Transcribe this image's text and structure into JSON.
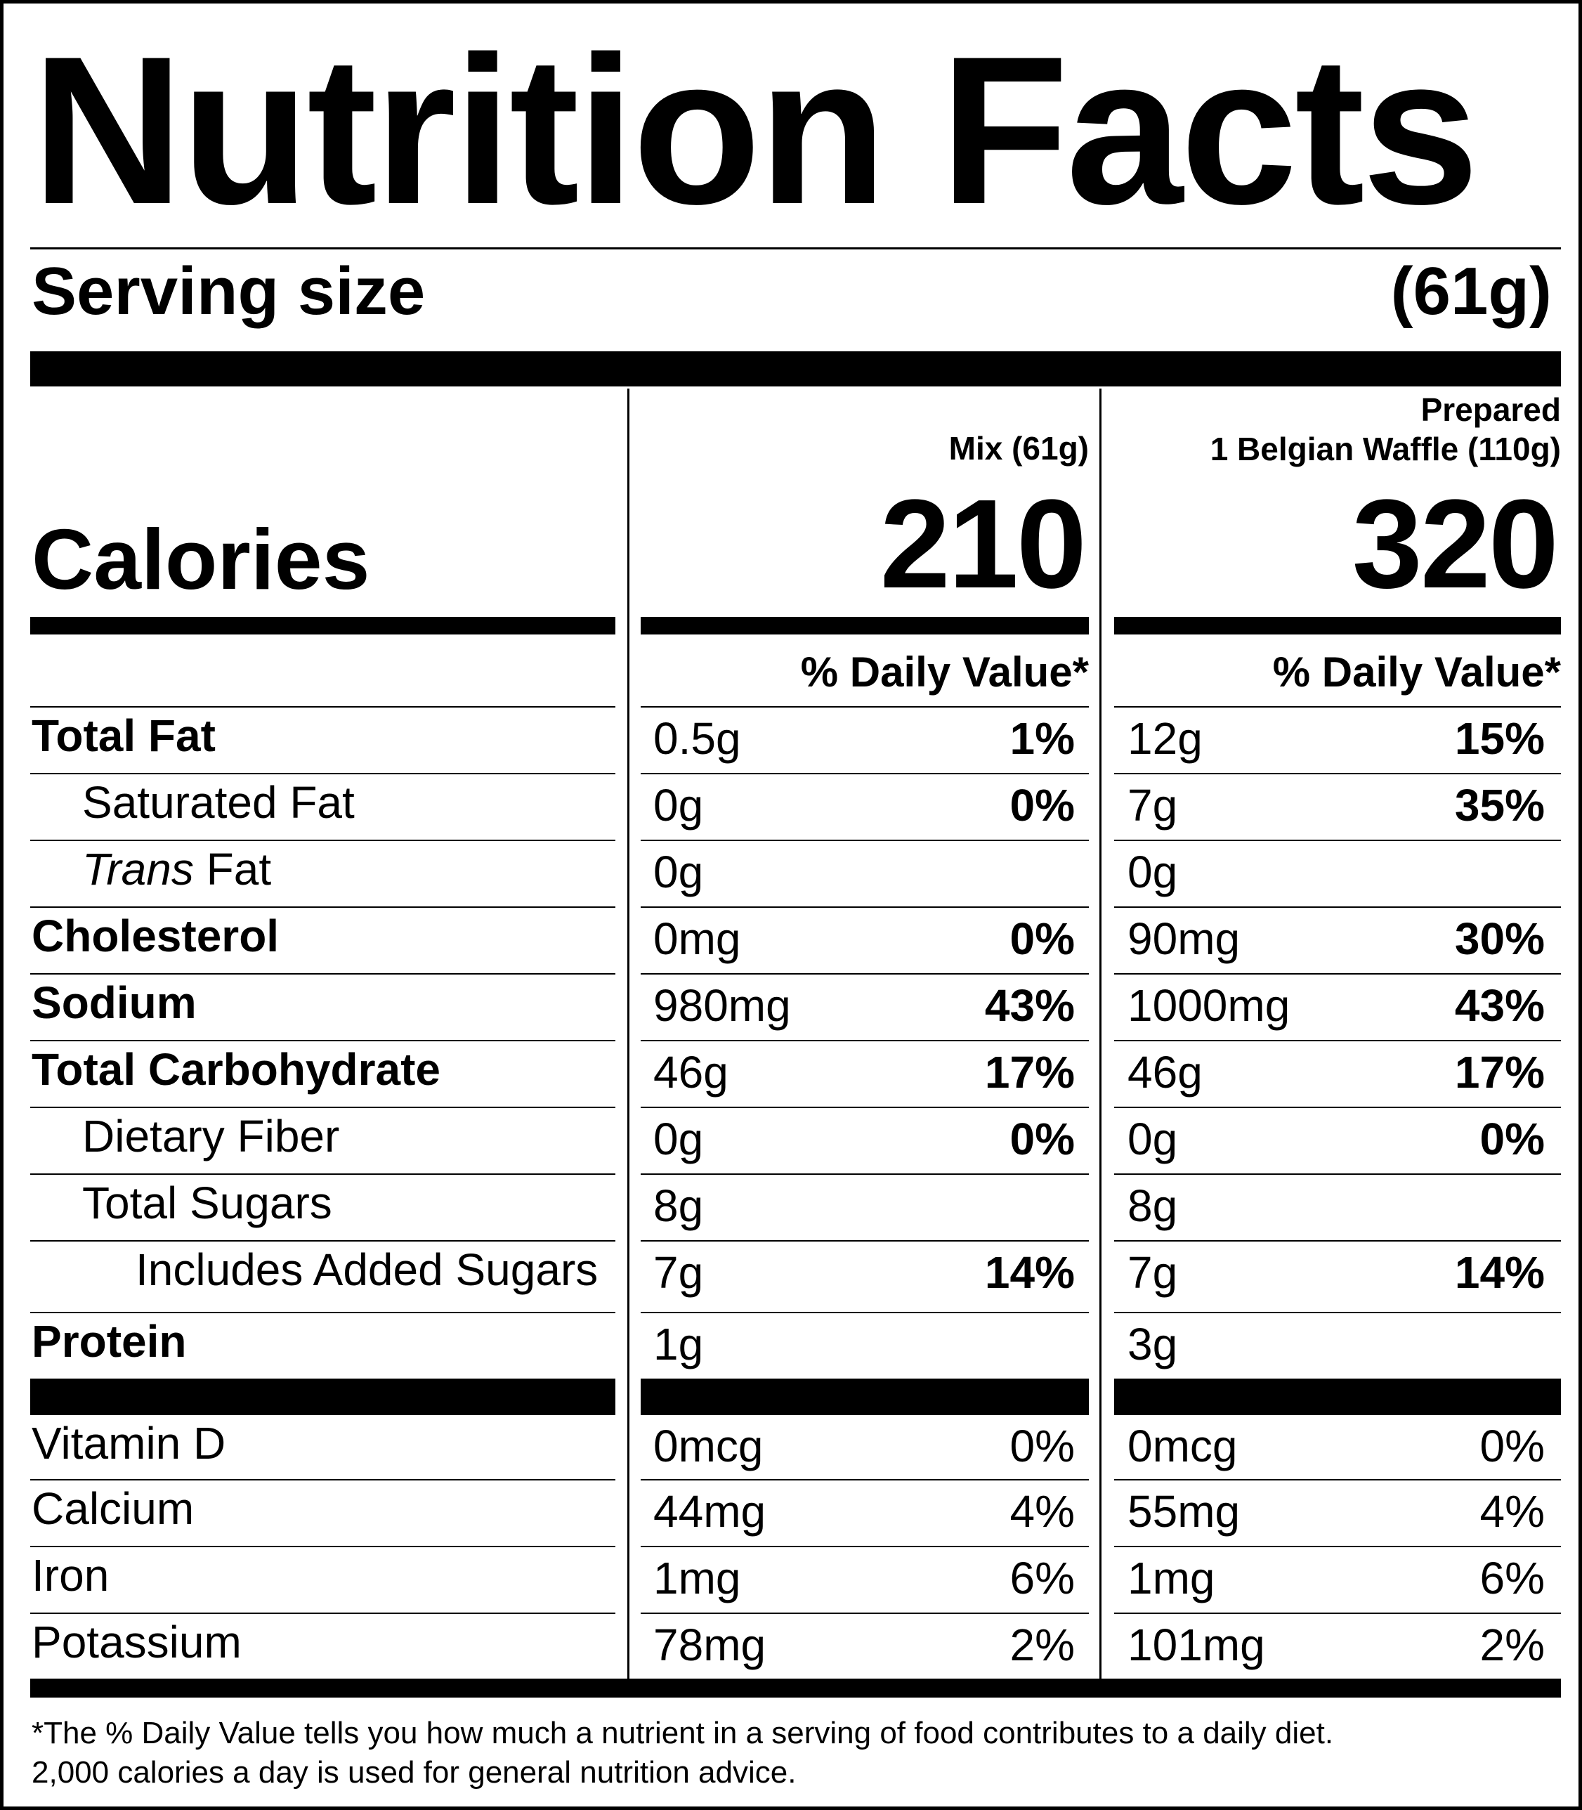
{
  "title": "Nutrition Facts",
  "serving": {
    "label": "Serving size",
    "value": "(61g)"
  },
  "calories_label": "Calories",
  "columns": [
    {
      "line1": "",
      "line2": "Mix (61g)",
      "calories": "210",
      "dv_header": "% Daily Value*"
    },
    {
      "line1": "Prepared",
      "line2": "1 Belgian Waffle (110g)",
      "calories": "320",
      "dv_header": "% Daily Value*"
    }
  ],
  "nutrients": [
    {
      "name": "Total Fat",
      "style": "bold",
      "indent": 0,
      "mix": {
        "amount": "0.5g",
        "dv": "1%"
      },
      "prepared": {
        "amount": "12g",
        "dv": "15%"
      }
    },
    {
      "name": "Saturated Fat",
      "style": "normal",
      "indent": 1,
      "mix": {
        "amount": "0g",
        "dv": "0%"
      },
      "prepared": {
        "amount": "7g",
        "dv": "35%"
      }
    },
    {
      "name_italic": "Trans",
      "name": " Fat",
      "style": "normal",
      "indent": 1,
      "mix": {
        "amount": "0g",
        "dv": ""
      },
      "prepared": {
        "amount": "0g",
        "dv": ""
      }
    },
    {
      "name": "Cholesterol",
      "style": "bold",
      "indent": 0,
      "mix": {
        "amount": "0mg",
        "dv": "0%"
      },
      "prepared": {
        "amount": "90mg",
        "dv": "30%"
      }
    },
    {
      "name": "Sodium",
      "style": "bold",
      "indent": 0,
      "mix": {
        "amount": "980mg",
        "dv": "43%"
      },
      "prepared": {
        "amount": "1000mg",
        "dv": "43%"
      }
    },
    {
      "name": "Total Carbohydrate",
      "style": "bold",
      "indent": 0,
      "mix": {
        "amount": "46g",
        "dv": "17%"
      },
      "prepared": {
        "amount": "46g",
        "dv": "17%"
      }
    },
    {
      "name": "Dietary Fiber",
      "style": "normal",
      "indent": 1,
      "mix": {
        "amount": "0g",
        "dv": "0%"
      },
      "prepared": {
        "amount": "0g",
        "dv": "0%"
      }
    },
    {
      "name": "Total Sugars",
      "style": "normal",
      "indent": 1,
      "mix": {
        "amount": "8g",
        "dv": ""
      },
      "prepared": {
        "amount": "8g",
        "dv": ""
      }
    },
    {
      "name": "Includes Added Sugars",
      "style": "normal",
      "indent": 2,
      "mix": {
        "amount": "7g",
        "dv": "14%"
      },
      "prepared": {
        "amount": "7g",
        "dv": "14%"
      }
    },
    {
      "name": "Protein",
      "style": "bold",
      "indent": 0,
      "mix": {
        "amount": "1g",
        "dv": ""
      },
      "prepared": {
        "amount": "3g",
        "dv": ""
      }
    }
  ],
  "vitamins": [
    {
      "name": "Vitamin D",
      "mix": {
        "amount": "0mcg",
        "dv": "0%"
      },
      "prepared": {
        "amount": "0mcg",
        "dv": "0%"
      }
    },
    {
      "name": "Calcium",
      "mix": {
        "amount": "44mg",
        "dv": "4%"
      },
      "prepared": {
        "amount": "55mg",
        "dv": "4%"
      }
    },
    {
      "name": "Iron",
      "mix": {
        "amount": "1mg",
        "dv": "6%"
      },
      "prepared": {
        "amount": "1mg",
        "dv": "6%"
      }
    },
    {
      "name": "Potassium",
      "mix": {
        "amount": "78mg",
        "dv": "2%"
      },
      "prepared": {
        "amount": "101mg",
        "dv": "2%"
      }
    }
  ],
  "footnote": {
    "line1": "*The % Daily Value tells you how much a nutrient in a serving of food contributes to a daily diet.",
    "line2": "2,000 calories a day is used for general nutrition advice."
  }
}
